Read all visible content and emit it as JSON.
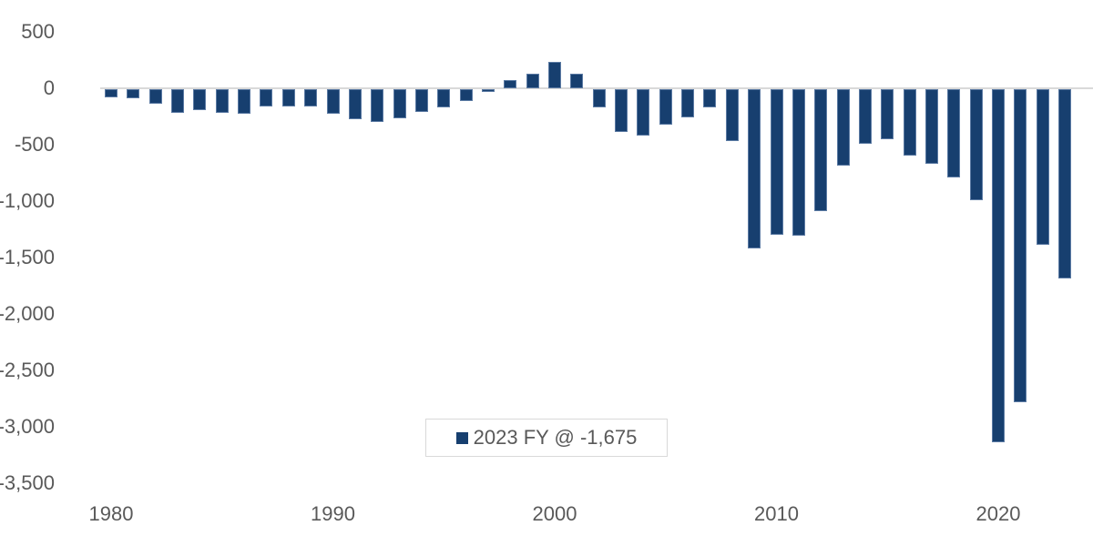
{
  "chart_data": {
    "type": "bar",
    "title": "",
    "xlabel": "",
    "ylabel": "",
    "ylim": [
      -3500,
      500
    ],
    "yticks": [
      "500",
      "0",
      "-500",
      "-1,000",
      "-1,500",
      "-2,000",
      "-2,500",
      "-3,000",
      "-3,500"
    ],
    "xticks": [
      "1980",
      "1990",
      "2000",
      "2010",
      "2020"
    ],
    "grid": false,
    "legend_position": "inside-bottom-center",
    "categories": [
      1980,
      1981,
      1982,
      1983,
      1984,
      1985,
      1986,
      1987,
      1988,
      1989,
      1990,
      1991,
      1992,
      1993,
      1994,
      1995,
      1996,
      1997,
      1998,
      1999,
      2000,
      2001,
      2002,
      2003,
      2004,
      2005,
      2006,
      2007,
      2008,
      2009,
      2010,
      2011,
      2012,
      2013,
      2014,
      2015,
      2016,
      2017,
      2018,
      2019,
      2020,
      2021,
      2022,
      2023
    ],
    "series": [
      {
        "name": "2023 FY @ -1,675",
        "color": "#173f6f",
        "values": [
          -74,
          -79,
          -128,
          -208,
          -185,
          -212,
          -221,
          -150,
          -155,
          -153,
          -221,
          -269,
          -290,
          -255,
          -203,
          -164,
          -107,
          -22,
          69,
          126,
          236,
          128,
          -158,
          -378,
          -413,
          -318,
          -248,
          -161,
          -459,
          -1413,
          -1294,
          -1300,
          -1077,
          -680,
          -485,
          -442,
          -585,
          -665,
          -779,
          -984,
          -3132,
          -2775,
          -1375,
          -1675
        ]
      }
    ]
  },
  "legend": {
    "label": "2023 FY @ -1,675",
    "color": "#173f6f"
  }
}
